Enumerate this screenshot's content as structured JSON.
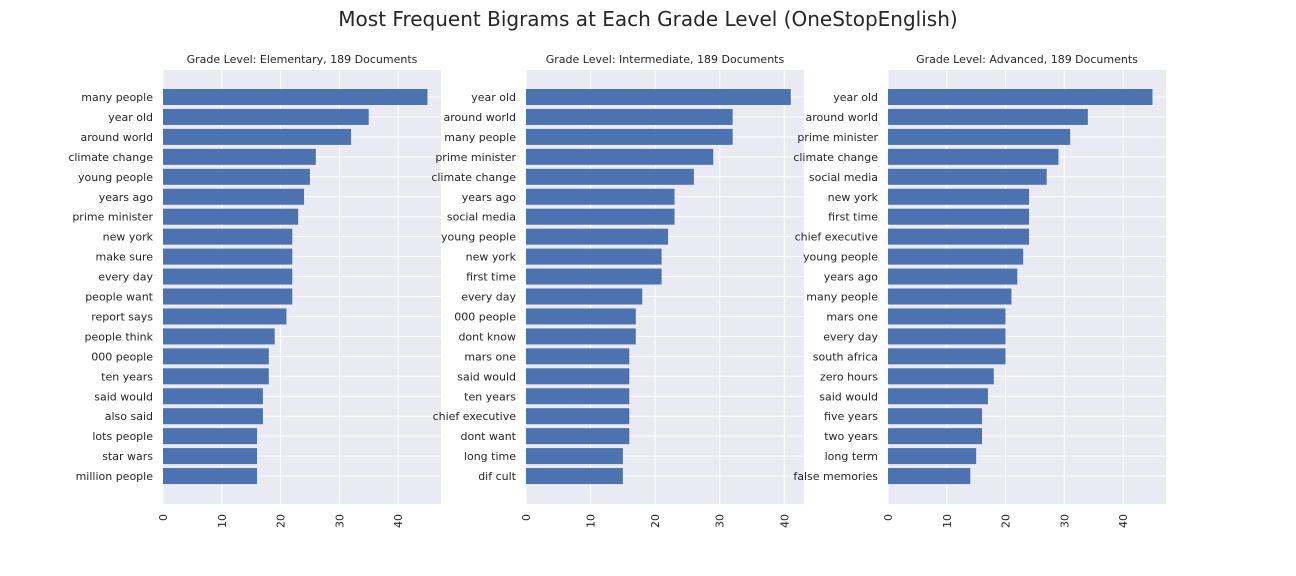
{
  "title": "Most Frequent Bigrams at Each Grade Level (OneStopEnglish)",
  "colors": {
    "bar": "#4c72b0",
    "plot_bg": "#eaeaf2",
    "grid": "#ffffff",
    "text": "#262626"
  },
  "chart_data": [
    {
      "type": "bar",
      "orientation": "horizontal",
      "title": "Grade Level: Elementary, 189 Documents",
      "xlim": [
        0,
        47.3
      ],
      "xticks": [
        "0",
        "10",
        "20",
        "30",
        "40"
      ],
      "grid": true,
      "categories": [
        "many people",
        "year old",
        "around world",
        "climate change",
        "young people",
        "years ago",
        "prime minister",
        "new york",
        "make sure",
        "every day",
        "people want",
        "report says",
        "people think",
        "000 people",
        "ten years",
        "said would",
        "also said",
        "lots people",
        "star wars",
        "million people"
      ],
      "values": [
        45,
        35,
        32,
        26,
        25,
        24,
        23,
        22,
        22,
        22,
        22,
        21,
        19,
        18,
        18,
        17,
        17,
        16,
        16,
        16
      ]
    },
    {
      "type": "bar",
      "orientation": "horizontal",
      "title": "Grade Level: Intermediate, 189 Documents",
      "xlim": [
        0,
        43.05
      ],
      "xticks": [
        "0",
        "10",
        "20",
        "30",
        "40"
      ],
      "grid": true,
      "categories": [
        "year old",
        "around world",
        "many people",
        "prime minister",
        "climate change",
        "years ago",
        "social media",
        "young people",
        "new york",
        "first time",
        "every day",
        "000 people",
        "dont know",
        "mars one",
        "said would",
        "ten years",
        "chief executive",
        "dont want",
        "long time",
        "dif cult"
      ],
      "values": [
        41,
        32,
        32,
        29,
        26,
        23,
        23,
        22,
        21,
        21,
        18,
        17,
        17,
        16,
        16,
        16,
        16,
        16,
        15,
        15
      ]
    },
    {
      "type": "bar",
      "orientation": "horizontal",
      "title": "Grade Level: Advanced, 189 Documents",
      "xlim": [
        0,
        47.3
      ],
      "xticks": [
        "0",
        "10",
        "20",
        "30",
        "40"
      ],
      "grid": true,
      "categories": [
        "year old",
        "around world",
        "prime minister",
        "climate change",
        "social media",
        "new york",
        "first time",
        "chief executive",
        "young people",
        "years ago",
        "many people",
        "mars one",
        "every day",
        "south africa",
        "zero hours",
        "said would",
        "five years",
        "two years",
        "long term",
        "false memories"
      ],
      "values": [
        45,
        34,
        31,
        29,
        27,
        24,
        24,
        24,
        23,
        22,
        21,
        20,
        20,
        20,
        18,
        17,
        16,
        16,
        15,
        14
      ]
    }
  ]
}
